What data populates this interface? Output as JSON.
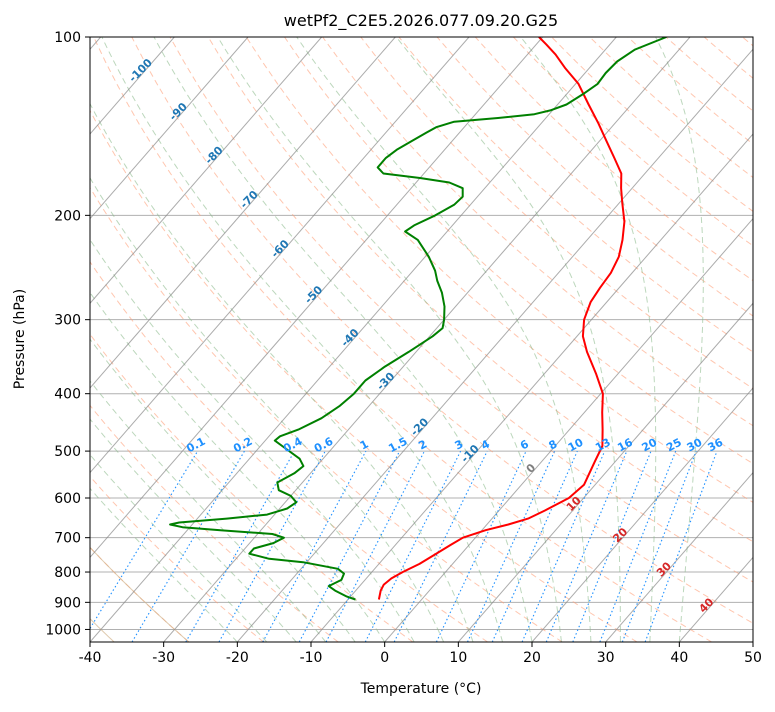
{
  "chart_data": {
    "type": "line",
    "title": "wetPf2_C2E5.2026.077.09.20.G25",
    "xlabel": "Temperature (°C)",
    "ylabel": "Pressure (hPa)",
    "xlim": [
      -40,
      50
    ],
    "ylim": [
      1050,
      100
    ],
    "y_scale": "log",
    "grid": true,
    "x_ticks": [
      "-40",
      "-30",
      "-20",
      "-10",
      "0",
      "10",
      "20",
      "30",
      "40",
      "50"
    ],
    "y_ticks": [
      "100",
      "200",
      "300",
      "400",
      "500",
      "600",
      "700",
      "800",
      "900",
      "1000"
    ],
    "series": [
      {
        "name": "",
        "color": "#ff0000",
        "points": [
          {
            "p": 890,
            "t": -5.8
          },
          {
            "p": 860,
            "t": -6.6
          },
          {
            "p": 840,
            "t": -6.9
          },
          {
            "p": 820,
            "t": -6.6
          },
          {
            "p": 800,
            "t": -5.8
          },
          {
            "p": 775,
            "t": -4.5
          },
          {
            "p": 750,
            "t": -3.6
          },
          {
            "p": 720,
            "t": -2.5
          },
          {
            "p": 700,
            "t": -1.7
          },
          {
            "p": 680,
            "t": 0.5
          },
          {
            "p": 665,
            "t": 2.9
          },
          {
            "p": 650,
            "t": 4.9
          },
          {
            "p": 630,
            "t": 6.2
          },
          {
            "p": 600,
            "t": 8.0
          },
          {
            "p": 570,
            "t": 8.5
          },
          {
            "p": 550,
            "t": 8.0
          },
          {
            "p": 520,
            "t": 7.2
          },
          {
            "p": 490,
            "t": 6.4
          },
          {
            "p": 460,
            "t": 4.5
          },
          {
            "p": 430,
            "t": 2.4
          },
          {
            "p": 400,
            "t": 0.3
          },
          {
            "p": 370,
            "t": -3.0
          },
          {
            "p": 340,
            "t": -6.8
          },
          {
            "p": 320,
            "t": -9.2
          },
          {
            "p": 300,
            "t": -11.0
          },
          {
            "p": 280,
            "t": -12.2
          },
          {
            "p": 265,
            "t": -12.6
          },
          {
            "p": 250,
            "t": -12.9
          },
          {
            "p": 235,
            "t": -13.7
          },
          {
            "p": 220,
            "t": -15.2
          },
          {
            "p": 205,
            "t": -17.1
          },
          {
            "p": 190,
            "t": -19.7
          },
          {
            "p": 180,
            "t": -21.5
          },
          {
            "p": 170,
            "t": -23.2
          },
          {
            "p": 160,
            "t": -26.0
          },
          {
            "p": 150,
            "t": -29.0
          },
          {
            "p": 140,
            "t": -32.2
          },
          {
            "p": 130,
            "t": -35.8
          },
          {
            "p": 120,
            "t": -39.6
          },
          {
            "p": 113,
            "t": -43.2
          },
          {
            "p": 107,
            "t": -46.2
          },
          {
            "p": 103,
            "t": -48.6
          },
          {
            "p": 100,
            "t": -50.5
          }
        ]
      },
      {
        "name": "",
        "color": "#008000",
        "points": [
          {
            "p": 890,
            "t": -9.0
          },
          {
            "p": 880,
            "t": -10.5
          },
          {
            "p": 860,
            "t": -12.8
          },
          {
            "p": 845,
            "t": -14.2
          },
          {
            "p": 825,
            "t": -13.2
          },
          {
            "p": 805,
            "t": -13.6
          },
          {
            "p": 790,
            "t": -15.0
          },
          {
            "p": 770,
            "t": -20.5
          },
          {
            "p": 760,
            "t": -25.5
          },
          {
            "p": 745,
            "t": -28.8
          },
          {
            "p": 730,
            "t": -28.8
          },
          {
            "p": 715,
            "t": -26.8
          },
          {
            "p": 700,
            "t": -26.0
          },
          {
            "p": 690,
            "t": -28.0
          },
          {
            "p": 680,
            "t": -35.5
          },
          {
            "p": 672,
            "t": -41.0
          },
          {
            "p": 665,
            "t": -43.0
          },
          {
            "p": 660,
            "t": -42.0
          },
          {
            "p": 650,
            "t": -36.0
          },
          {
            "p": 640,
            "t": -31.0
          },
          {
            "p": 625,
            "t": -29.0
          },
          {
            "p": 610,
            "t": -28.5
          },
          {
            "p": 595,
            "t": -30.0
          },
          {
            "p": 582,
            "t": -32.3
          },
          {
            "p": 565,
            "t": -33.4
          },
          {
            "p": 545,
            "t": -32.2
          },
          {
            "p": 530,
            "t": -31.8
          },
          {
            "p": 515,
            "t": -33.2
          },
          {
            "p": 495,
            "t": -36.3
          },
          {
            "p": 480,
            "t": -38.7
          },
          {
            "p": 472,
            "t": -38.5
          },
          {
            "p": 460,
            "t": -36.8
          },
          {
            "p": 440,
            "t": -35.0
          },
          {
            "p": 420,
            "t": -34.0
          },
          {
            "p": 400,
            "t": -33.5
          },
          {
            "p": 380,
            "t": -33.5
          },
          {
            "p": 360,
            "t": -32.5
          },
          {
            "p": 340,
            "t": -31.0
          },
          {
            "p": 320,
            "t": -29.6
          },
          {
            "p": 310,
            "t": -29.2
          },
          {
            "p": 300,
            "t": -30.0
          },
          {
            "p": 285,
            "t": -31.5
          },
          {
            "p": 270,
            "t": -33.5
          },
          {
            "p": 258,
            "t": -35.5
          },
          {
            "p": 248,
            "t": -37.0
          },
          {
            "p": 235,
            "t": -39.5
          },
          {
            "p": 220,
            "t": -43.0
          },
          {
            "p": 213,
            "t": -45.7
          },
          {
            "p": 208,
            "t": -45.2
          },
          {
            "p": 200,
            "t": -43.5
          },
          {
            "p": 192,
            "t": -42.2
          },
          {
            "p": 186,
            "t": -42.0
          },
          {
            "p": 180,
            "t": -43.0
          },
          {
            "p": 176,
            "t": -45.5
          },
          {
            "p": 173,
            "t": -50.0
          },
          {
            "p": 170,
            "t": -55.5
          },
          {
            "p": 166,
            "t": -57.0
          },
          {
            "p": 160,
            "t": -57.0
          },
          {
            "p": 155,
            "t": -56.5
          },
          {
            "p": 150,
            "t": -55.5
          },
          {
            "p": 145,
            "t": -54.5
          },
          {
            "p": 142,
            "t": -53.8
          },
          {
            "p": 139,
            "t": -52.0
          },
          {
            "p": 137,
            "t": -46.5
          },
          {
            "p": 135,
            "t": -42.0
          },
          {
            "p": 133,
            "t": -40.3
          },
          {
            "p": 130,
            "t": -38.8
          },
          {
            "p": 125,
            "t": -37.8
          },
          {
            "p": 120,
            "t": -37.0
          },
          {
            "p": 115,
            "t": -37.2
          },
          {
            "p": 110,
            "t": -37.0
          },
          {
            "p": 105,
            "t": -36.0
          },
          {
            "p": 100,
            "t": -33.2
          }
        ]
      }
    ],
    "isotherm_labels": [
      "-100",
      "-90",
      "-80",
      "-70",
      "-60",
      "-50",
      "-40",
      "-30",
      "-20",
      "-10",
      "0",
      "10",
      "20",
      "30",
      "40"
    ],
    "mixing_ratio_labels": [
      "0.1",
      "0.2",
      "0.4",
      "0.6",
      "1",
      "1.5",
      "2",
      "3",
      "4",
      "6",
      "8",
      "10",
      "13",
      "16",
      "20",
      "25",
      "30",
      "36"
    ],
    "colors": {
      "temperature": "#ff0000",
      "dewpoint": "#008000",
      "isotherm_label": "#1f77b4",
      "isotherm_label_warm": "#d62728",
      "isotherm_label_zero": "#7f7f7f",
      "mixing_ratio": "#1e90ff",
      "dry_adiabat": "#ffa07a",
      "moist_adiabat": "#8fbc8f",
      "dry_adiabat_solid": "#d2b48c",
      "skewed_isotherm": "#888888"
    }
  }
}
